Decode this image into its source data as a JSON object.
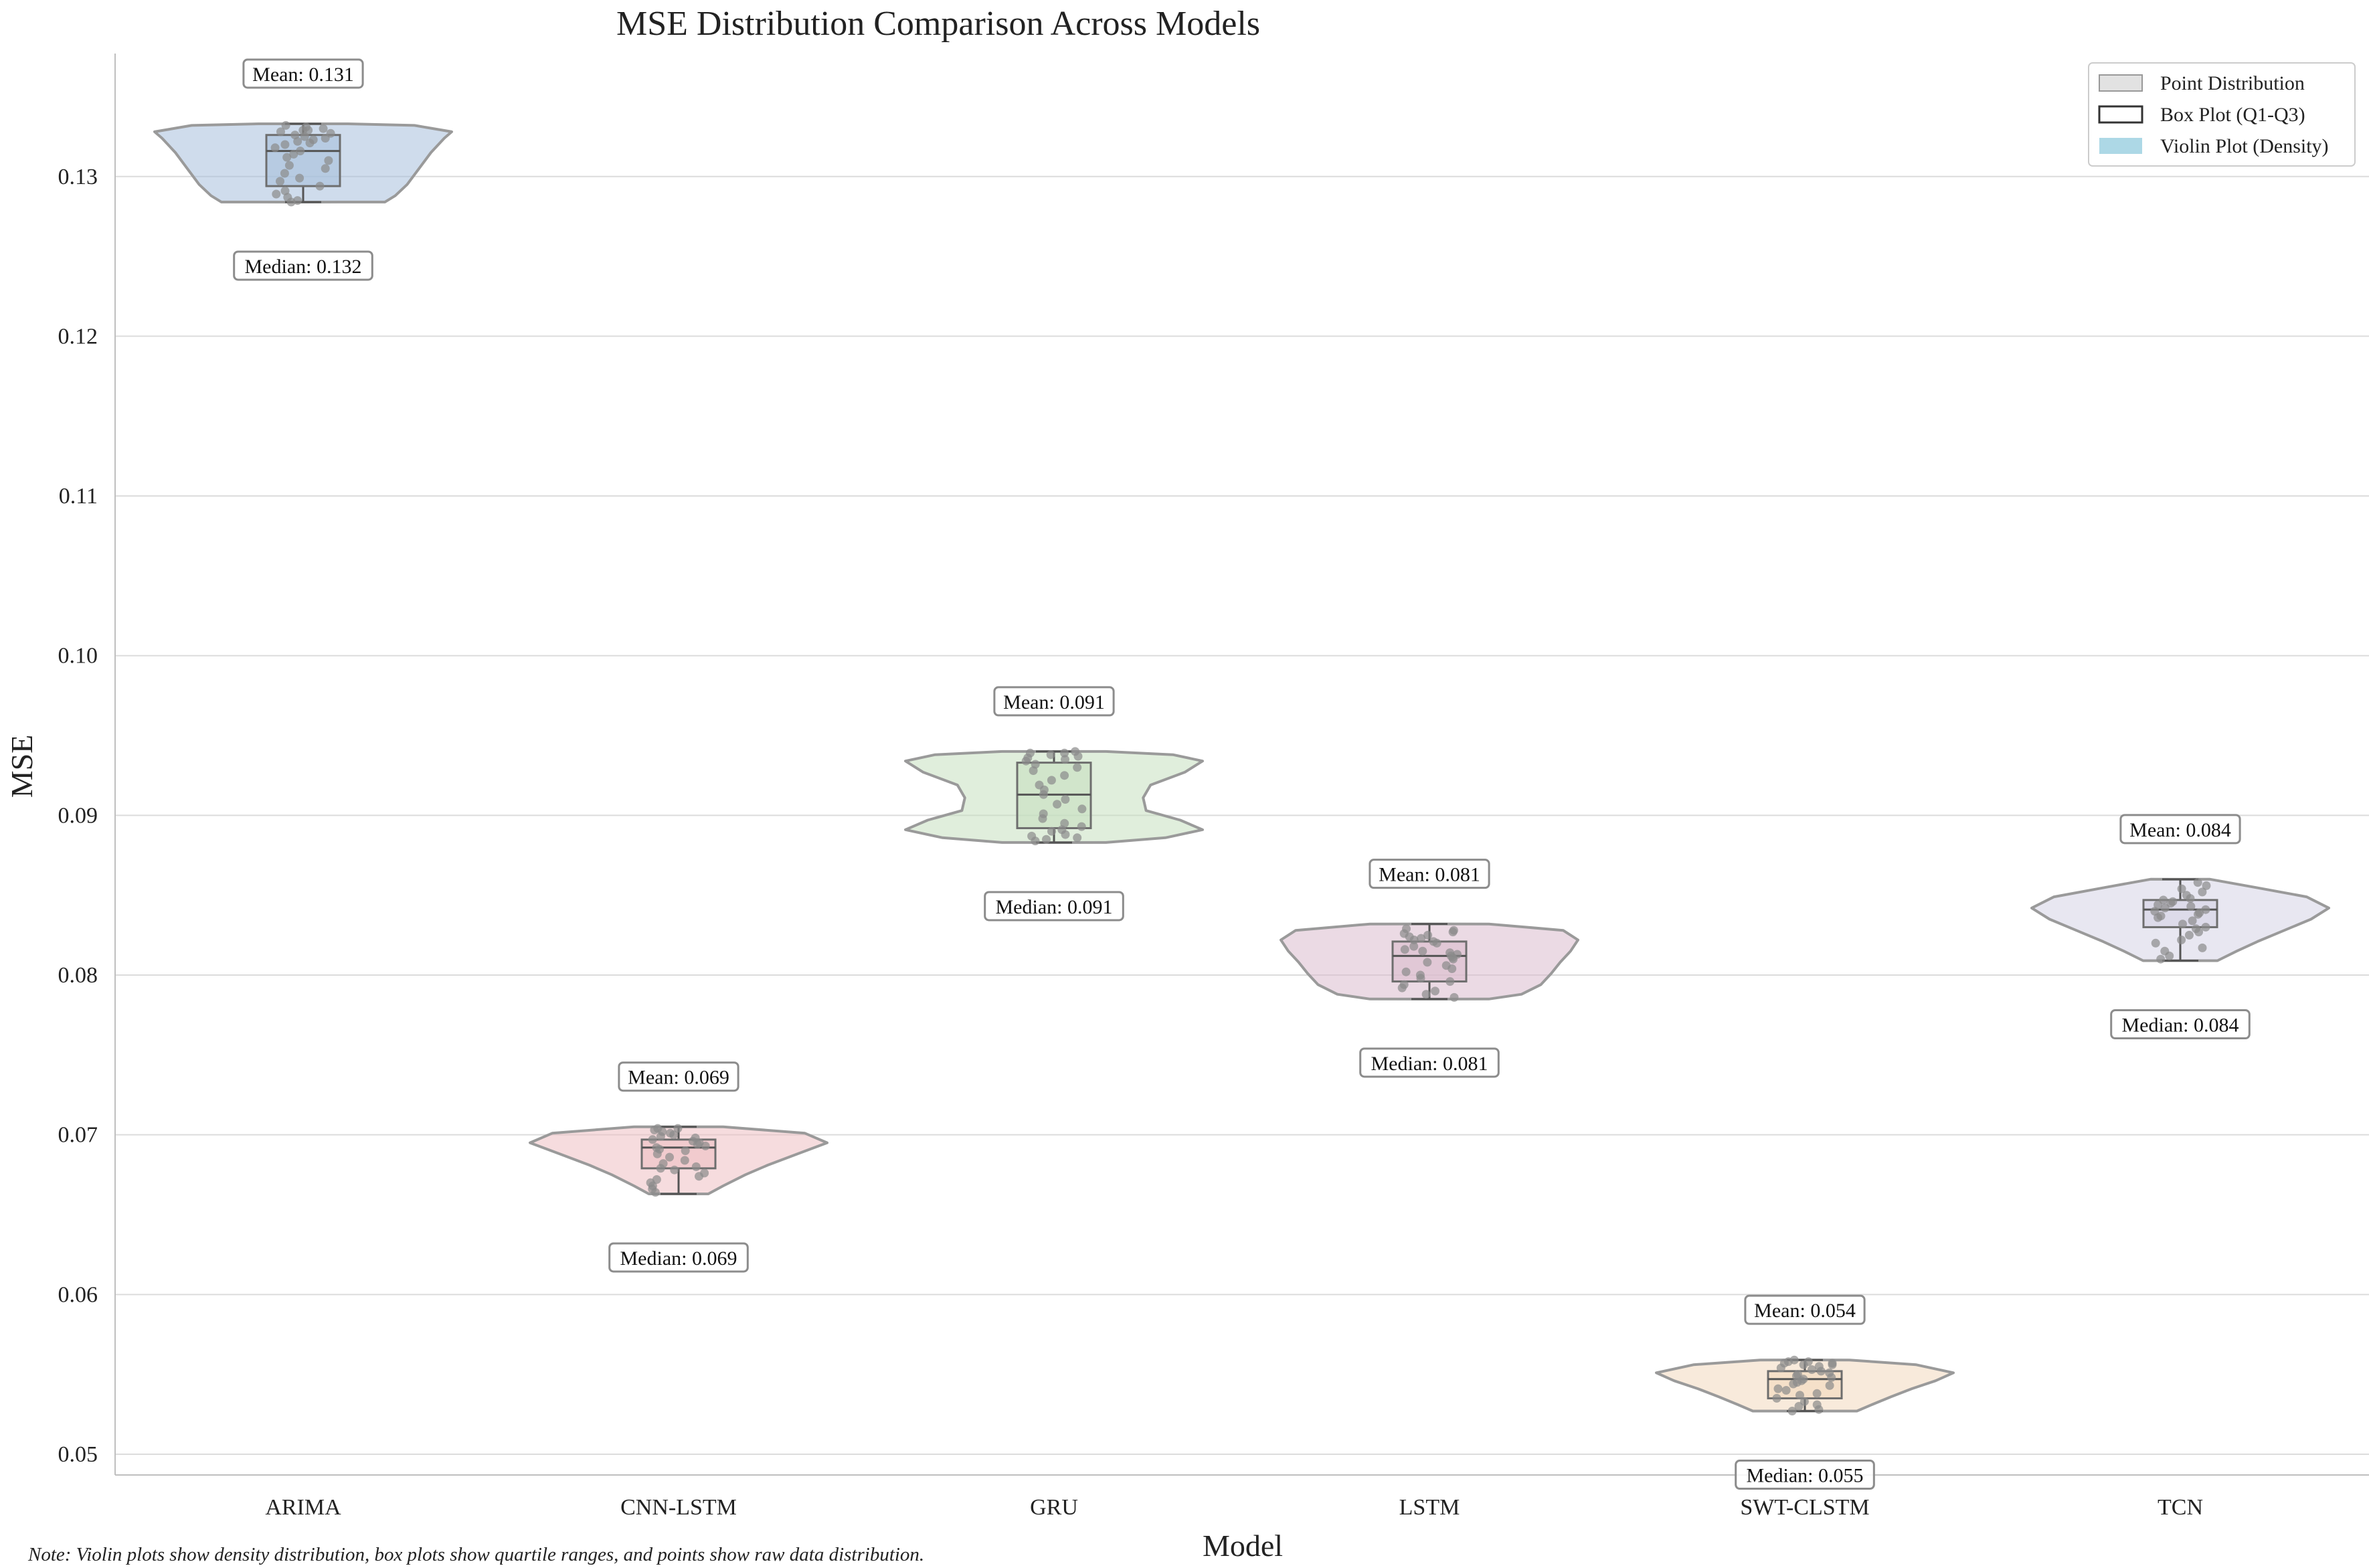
{
  "chart_data": {
    "type": "violin",
    "title": "MSE Distribution Comparison Across Models",
    "xlabel": "Model",
    "ylabel": "MSE",
    "ylim": [
      0.0487,
      0.1377
    ],
    "yticks": [
      0.05,
      0.06,
      0.07,
      0.08,
      0.09,
      0.1,
      0.11,
      0.12,
      0.13
    ],
    "ytick_labels": [
      "0.05",
      "0.06",
      "0.07",
      "0.08",
      "0.09",
      "0.10",
      "0.11",
      "0.12",
      "0.13"
    ],
    "grid": "horizontal",
    "legend_position": "top-right",
    "categories": [
      "ARIMA",
      "CNN-LSTM",
      "GRU",
      "LSTM",
      "SWT-CLSTM",
      "TCN"
    ],
    "series": [
      {
        "name": "ARIMA",
        "color": "#a7c0dc",
        "min": 0.1284,
        "q1": 0.1294,
        "median": 0.1316,
        "q3": 0.1326,
        "max": 0.1333,
        "mean_label": "Mean: 0.131",
        "median_label": "Median: 0.132",
        "density": [
          [
            0.1284,
            0.55
          ],
          [
            0.1288,
            0.62
          ],
          [
            0.1295,
            0.7
          ],
          [
            0.1305,
            0.78
          ],
          [
            0.1315,
            0.86
          ],
          [
            0.1324,
            0.95
          ],
          [
            0.1328,
            1.0
          ],
          [
            0.1332,
            0.75
          ],
          [
            0.1333,
            0.3
          ]
        ],
        "points": [
          0.1284,
          0.1285,
          0.1287,
          0.1289,
          0.1291,
          0.1294,
          0.1297,
          0.1299,
          0.1302,
          0.1305,
          0.1307,
          0.131,
          0.1312,
          0.1314,
          0.1316,
          0.1318,
          0.132,
          0.1321,
          0.1322,
          0.1323,
          0.1324,
          0.1325,
          0.1326,
          0.1327,
          0.1328,
          0.1329,
          0.1329,
          0.133,
          0.1331,
          0.1332
        ]
      },
      {
        "name": "CNN-LSTM",
        "color": "#efbfc3",
        "min": 0.0663,
        "q1": 0.0679,
        "median": 0.0692,
        "q3": 0.0697,
        "max": 0.0705,
        "mean_label": "Mean: 0.069",
        "median_label": "Median: 0.069",
        "density": [
          [
            0.0663,
            0.2
          ],
          [
            0.0668,
            0.3
          ],
          [
            0.0675,
            0.45
          ],
          [
            0.0681,
            0.6
          ],
          [
            0.0688,
            0.8
          ],
          [
            0.0695,
            1.0
          ],
          [
            0.0701,
            0.85
          ],
          [
            0.0705,
            0.3
          ]
        ],
        "points": [
          0.0664,
          0.0666,
          0.0668,
          0.067,
          0.0672,
          0.0674,
          0.0676,
          0.0678,
          0.0679,
          0.068,
          0.0682,
          0.0684,
          0.0686,
          0.0688,
          0.069,
          0.0691,
          0.0692,
          0.0693,
          0.0694,
          0.0695,
          0.0696,
          0.0697,
          0.0698,
          0.0699,
          0.07,
          0.0701,
          0.0702,
          0.0703,
          0.0704,
          0.0704
        ]
      },
      {
        "name": "GRU",
        "color": "#c7e0bf",
        "min": 0.0883,
        "q1": 0.0892,
        "median": 0.0913,
        "q3": 0.0933,
        "max": 0.094,
        "mean_label": "Mean: 0.091",
        "median_label": "Median: 0.091",
        "density": [
          [
            0.0883,
            0.35
          ],
          [
            0.0886,
            0.75
          ],
          [
            0.0891,
            1.0
          ],
          [
            0.0897,
            0.85
          ],
          [
            0.0903,
            0.62
          ],
          [
            0.0911,
            0.6
          ],
          [
            0.0919,
            0.65
          ],
          [
            0.0927,
            0.88
          ],
          [
            0.0934,
            1.0
          ],
          [
            0.0938,
            0.8
          ],
          [
            0.094,
            0.35
          ]
        ],
        "points": [
          0.0884,
          0.0885,
          0.0886,
          0.0887,
          0.0888,
          0.089,
          0.0891,
          0.0893,
          0.0895,
          0.0898,
          0.0901,
          0.0904,
          0.0907,
          0.091,
          0.0913,
          0.0916,
          0.0919,
          0.0922,
          0.0925,
          0.0928,
          0.093,
          0.0932,
          0.0934,
          0.0935,
          0.0936,
          0.0937,
          0.0938,
          0.0939,
          0.0939,
          0.094
        ]
      },
      {
        "name": "LSTM",
        "color": "#dbbccd",
        "min": 0.0785,
        "q1": 0.0796,
        "median": 0.0812,
        "q3": 0.0821,
        "max": 0.0832,
        "mean_label": "Mean: 0.081",
        "median_label": "Median: 0.081",
        "density": [
          [
            0.0785,
            0.4
          ],
          [
            0.0788,
            0.62
          ],
          [
            0.0794,
            0.75
          ],
          [
            0.0801,
            0.82
          ],
          [
            0.0808,
            0.88
          ],
          [
            0.0815,
            0.95
          ],
          [
            0.0822,
            1.0
          ],
          [
            0.0828,
            0.9
          ],
          [
            0.0832,
            0.4
          ]
        ],
        "points": [
          0.0786,
          0.0788,
          0.079,
          0.0792,
          0.0794,
          0.0796,
          0.0798,
          0.08,
          0.0802,
          0.0804,
          0.0806,
          0.0808,
          0.081,
          0.0811,
          0.0812,
          0.0813,
          0.0814,
          0.0815,
          0.0816,
          0.0818,
          0.082,
          0.0821,
          0.0822,
          0.0823,
          0.0824,
          0.0825,
          0.0826,
          0.0827,
          0.0828,
          0.0829
        ]
      },
      {
        "name": "SWT-CLSTM",
        "color": "#f3d9bd",
        "min": 0.0527,
        "q1": 0.0535,
        "median": 0.0547,
        "q3": 0.0552,
        "max": 0.0559,
        "mean_label": "Mean: 0.054",
        "median_label": "Median: 0.055",
        "density": [
          [
            0.0527,
            0.35
          ],
          [
            0.0531,
            0.45
          ],
          [
            0.0536,
            0.58
          ],
          [
            0.0541,
            0.72
          ],
          [
            0.0546,
            0.88
          ],
          [
            0.0551,
            1.0
          ],
          [
            0.0556,
            0.75
          ],
          [
            0.0559,
            0.3
          ]
        ],
        "points": [
          0.0527,
          0.0528,
          0.053,
          0.0531,
          0.0533,
          0.0535,
          0.0537,
          0.0538,
          0.054,
          0.0541,
          0.0543,
          0.0544,
          0.0545,
          0.0546,
          0.0547,
          0.0548,
          0.0549,
          0.055,
          0.0551,
          0.0552,
          0.0553,
          0.0554,
          0.0555,
          0.0556,
          0.0556,
          0.0557,
          0.0557,
          0.0558,
          0.0558,
          0.0559
        ]
      },
      {
        "name": "TCN",
        "color": "#d6d4e6",
        "min": 0.0809,
        "q1": 0.083,
        "median": 0.0841,
        "q3": 0.0847,
        "max": 0.086,
        "mean_label": "Mean: 0.084",
        "median_label": "Median: 0.084",
        "density": [
          [
            0.0809,
            0.25
          ],
          [
            0.0815,
            0.38
          ],
          [
            0.0821,
            0.52
          ],
          [
            0.0828,
            0.7
          ],
          [
            0.0835,
            0.88
          ],
          [
            0.0842,
            1.0
          ],
          [
            0.0849,
            0.85
          ],
          [
            0.0855,
            0.5
          ],
          [
            0.086,
            0.2
          ]
        ],
        "points": [
          0.081,
          0.0812,
          0.0815,
          0.0817,
          0.082,
          0.0822,
          0.0825,
          0.0827,
          0.0829,
          0.083,
          0.0832,
          0.0834,
          0.0836,
          0.0837,
          0.0838,
          0.0839,
          0.084,
          0.0841,
          0.0842,
          0.0843,
          0.0844,
          0.0845,
          0.0846,
          0.0847,
          0.0848,
          0.085,
          0.0852,
          0.0854,
          0.0856,
          0.0858
        ]
      }
    ],
    "legend": [
      {
        "label": "Point Distribution",
        "swatch": "filled",
        "color": "#e2e2e2"
      },
      {
        "label": "Box Plot (Q1-Q3)",
        "swatch": "outline",
        "color": "#333333"
      },
      {
        "label": "Violin Plot (Density)",
        "swatch": "filled",
        "color": "#add8e6"
      }
    ],
    "note": "Note: Violin plots show density distribution, box plots show quartile ranges, and points show raw data distribution."
  }
}
